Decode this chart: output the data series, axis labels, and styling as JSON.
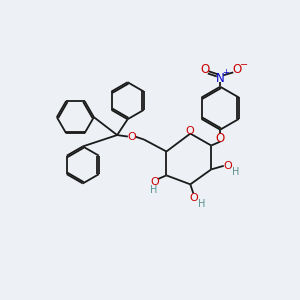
{
  "background_color": "#edf1f5",
  "bond_color": "#1a1a1a",
  "oxygen_color": "#cc0000",
  "nitrogen_color": "#0000cc",
  "hydrogen_color": "#5a9090",
  "figsize": [
    3.0,
    3.0
  ],
  "dpi": 100,
  "xlim": [
    0,
    10
  ],
  "ylim": [
    0,
    10
  ]
}
